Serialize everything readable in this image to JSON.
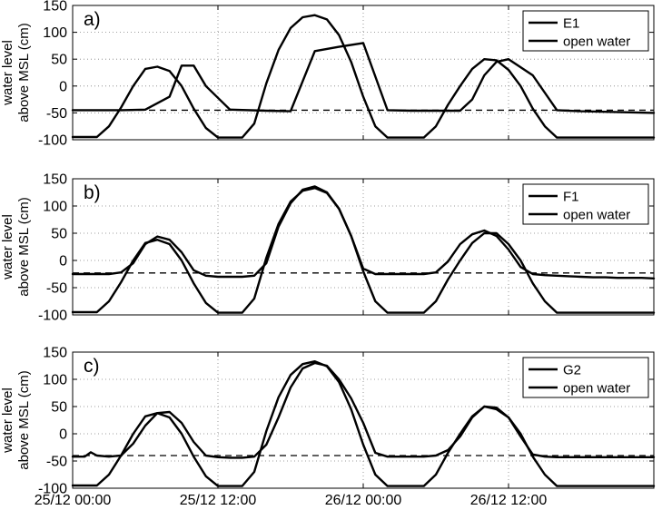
{
  "chart_data": [
    {
      "type": "line",
      "panel_label": "a)",
      "ylabel": [
        "water level",
        "above MSL (cm)"
      ],
      "xlim": [
        0,
        48
      ],
      "ylim": [
        -100,
        150
      ],
      "yticks": [
        -100,
        -50,
        0,
        50,
        100,
        150
      ],
      "xticks": [
        0,
        12,
        24,
        36,
        48
      ],
      "xtick_labels": [
        "25/12 00:00",
        "25/12 12:00",
        "26/12 00:00",
        "26/12 12:00"
      ],
      "grid": true,
      "legend_position": "top-right",
      "reference_line": {
        "y": -45,
        "style": "dashed"
      },
      "series": [
        {
          "name": "E1",
          "x": [
            0,
            2,
            4,
            6,
            8,
            9,
            10,
            11,
            13,
            16,
            18,
            20,
            22,
            24,
            26,
            28,
            30,
            32,
            33,
            34,
            35,
            36,
            38,
            40,
            42,
            44,
            46,
            48
          ],
          "y": [
            -45,
            -45,
            -45,
            -44,
            -20,
            38,
            38,
            0,
            -44,
            -46,
            -47,
            65,
            73,
            80,
            -45,
            -46,
            -46,
            -46,
            -25,
            20,
            45,
            50,
            20,
            -45,
            -47,
            -48,
            -49,
            -50
          ]
        },
        {
          "name": "open water",
          "x": [
            0,
            2,
            3,
            4,
            5,
            6,
            7,
            8,
            9,
            10,
            11,
            12,
            13,
            14,
            15,
            16,
            17,
            18,
            19,
            20,
            21,
            22,
            23,
            24,
            25,
            26,
            27,
            28,
            29,
            30,
            31,
            32,
            33,
            34,
            35,
            36,
            37,
            38,
            39,
            40,
            41,
            42,
            43,
            44,
            45,
            46,
            47,
            48
          ],
          "y": [
            -95,
            -95,
            -75,
            -40,
            0,
            32,
            36,
            28,
            0,
            -42,
            -78,
            -96,
            -96,
            -96,
            -70,
            5,
            67,
            108,
            128,
            132,
            124,
            95,
            45,
            -20,
            -75,
            -96,
            -96,
            -96,
            -96,
            -75,
            -35,
            0,
            32,
            50,
            48,
            30,
            0,
            -42,
            -75,
            -96,
            -96,
            -96,
            -96,
            -96,
            -96,
            -96,
            -96,
            -96
          ]
        }
      ]
    },
    {
      "type": "line",
      "panel_label": "b)",
      "ylabel": [
        "water level",
        "above MSL (cm)"
      ],
      "xlim": [
        0,
        48
      ],
      "ylim": [
        -100,
        150
      ],
      "yticks": [
        -100,
        -50,
        0,
        50,
        100,
        150
      ],
      "xticks": [
        0,
        12,
        24,
        36,
        48
      ],
      "xtick_labels": [
        "25/12 00:00",
        "25/12 12:00",
        "26/12 00:00",
        "26/12 12:00"
      ],
      "grid": true,
      "legend_position": "top-right",
      "reference_line": {
        "y": -23,
        "style": "dashed"
      },
      "series": [
        {
          "name": "F1",
          "x": [
            0,
            1,
            2,
            3,
            4,
            5,
            6,
            7,
            8,
            9,
            10,
            11,
            12,
            13,
            14,
            15,
            16,
            17,
            18,
            19,
            20,
            21,
            22,
            23,
            24,
            25,
            26,
            27,
            28,
            29,
            30,
            31,
            32,
            33,
            34,
            35,
            36,
            37,
            38,
            39,
            40,
            41,
            42,
            43,
            44,
            45,
            46,
            47,
            48
          ],
          "y": [
            -25,
            -25,
            -25,
            -25,
            -22,
            -5,
            30,
            44,
            38,
            15,
            -18,
            -28,
            -30,
            -30,
            -30,
            -28,
            -5,
            62,
            105,
            130,
            136,
            125,
            95,
            45,
            -15,
            -25,
            -25,
            -25,
            -25,
            -25,
            -22,
            -2,
            30,
            48,
            55,
            45,
            20,
            -12,
            -25,
            -27,
            -28,
            -29,
            -30,
            -31,
            -31,
            -32,
            -32,
            -32,
            -33
          ]
        },
        {
          "name": "open water",
          "x": [
            0,
            2,
            3,
            4,
            5,
            6,
            7,
            8,
            9,
            10,
            11,
            12,
            13,
            14,
            15,
            16,
            17,
            18,
            19,
            20,
            21,
            22,
            23,
            24,
            25,
            26,
            27,
            28,
            29,
            30,
            31,
            32,
            33,
            34,
            35,
            36,
            37,
            38,
            39,
            40,
            41,
            42,
            43,
            44,
            45,
            46,
            47,
            48
          ],
          "y": [
            -95,
            -95,
            -75,
            -40,
            0,
            32,
            38,
            30,
            0,
            -42,
            -78,
            -96,
            -96,
            -96,
            -70,
            5,
            67,
            108,
            128,
            133,
            124,
            95,
            45,
            -20,
            -75,
            -96,
            -96,
            -96,
            -96,
            -75,
            -35,
            0,
            32,
            50,
            50,
            30,
            0,
            -42,
            -75,
            -96,
            -96,
            -96,
            -96,
            -96,
            -96,
            -96,
            -96,
            -96
          ]
        }
      ]
    },
    {
      "type": "line",
      "panel_label": "c)",
      "ylabel": [
        "water level",
        "above MSL (cm)"
      ],
      "xlim": [
        0,
        48
      ],
      "ylim": [
        -100,
        150
      ],
      "yticks": [
        -100,
        -50,
        0,
        50,
        100,
        150
      ],
      "xticks": [
        0,
        12,
        24,
        36,
        48
      ],
      "xtick_labels": [
        "25/12 00:00",
        "25/12 12:00",
        "26/12 00:00",
        "26/12 12:00"
      ],
      "grid": true,
      "legend_position": "top-right",
      "reference_line": {
        "y": -40,
        "style": "dashed"
      },
      "series": [
        {
          "name": "G2",
          "x": [
            0,
            1,
            1.5,
            2,
            3,
            4,
            5,
            6,
            7,
            8,
            9,
            10,
            11,
            12,
            13,
            14,
            15,
            16,
            17,
            18,
            19,
            20,
            21,
            22,
            23,
            24,
            25,
            26,
            27,
            28,
            29,
            30,
            31,
            32,
            33,
            34,
            35,
            36,
            37,
            38,
            39,
            40,
            41,
            42,
            43,
            44,
            45,
            46,
            47,
            48
          ],
          "y": [
            -42,
            -42,
            -34,
            -40,
            -42,
            -40,
            -18,
            15,
            38,
            40,
            20,
            -15,
            -40,
            -43,
            -44,
            -44,
            -42,
            -20,
            30,
            85,
            120,
            130,
            125,
            100,
            65,
            20,
            -35,
            -42,
            -42,
            -42,
            -42,
            -40,
            -30,
            -5,
            30,
            50,
            45,
            30,
            -5,
            -38,
            -42,
            -43,
            -43,
            -43,
            -43,
            -43,
            -43,
            -43,
            -43,
            -43
          ]
        },
        {
          "name": "open water",
          "x": [
            0,
            2,
            3,
            4,
            5,
            6,
            7,
            8,
            9,
            10,
            11,
            12,
            13,
            14,
            15,
            16,
            17,
            18,
            19,
            20,
            21,
            22,
            23,
            24,
            25,
            26,
            27,
            28,
            29,
            30,
            31,
            32,
            33,
            34,
            35,
            36,
            37,
            38,
            39,
            40,
            41,
            42,
            43,
            44,
            45,
            46,
            47,
            48
          ],
          "y": [
            -95,
            -95,
            -75,
            -40,
            0,
            32,
            38,
            30,
            0,
            -42,
            -78,
            -96,
            -96,
            -96,
            -70,
            5,
            67,
            108,
            128,
            133,
            124,
            95,
            45,
            -20,
            -75,
            -96,
            -96,
            -96,
            -96,
            -75,
            -35,
            0,
            32,
            50,
            48,
            30,
            0,
            -42,
            -75,
            -96,
            -96,
            -96,
            -96,
            -96,
            -96,
            -96,
            -96,
            -96
          ]
        }
      ]
    }
  ]
}
